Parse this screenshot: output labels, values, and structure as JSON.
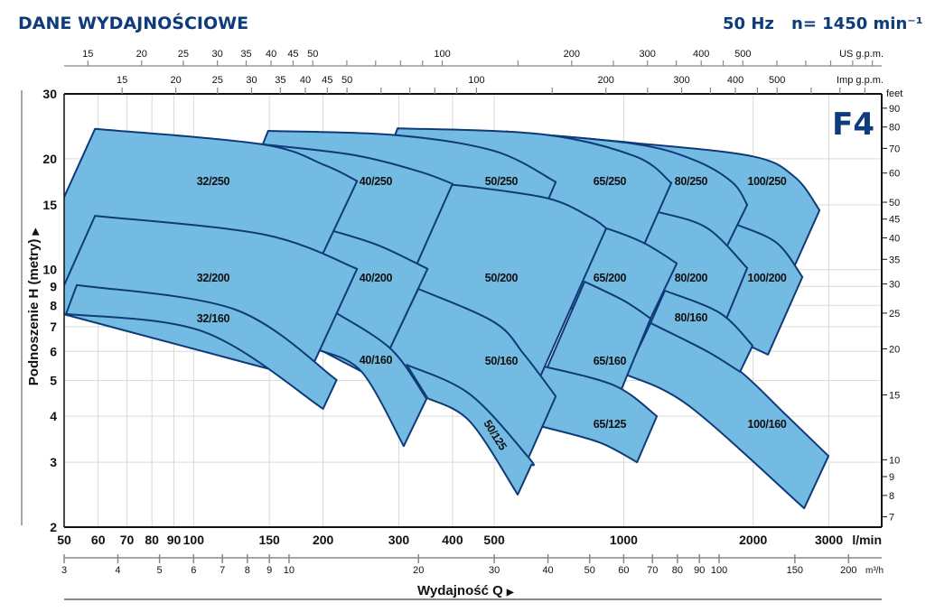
{
  "header": {
    "title": "DANE WYDAJNOŚCIOWE",
    "frequency": "50 Hz",
    "speed": "n= 1450 min⁻¹",
    "series_code": "F4"
  },
  "colors": {
    "navy": "#0d3b7c",
    "region_fill": "#74bbe3",
    "region_stroke": "#0f3a78"
  },
  "chart_data": {
    "type": "area",
    "title": "DANE WYDAJNOŚCIOWE",
    "xlabel": "Wydajność Q",
    "xlabel_arrow": "▶",
    "ylabel": "Podnoszenie H  (metry)",
    "ylabel_arrow": "▶",
    "x_unit": "l/min",
    "x_scale": "log",
    "xlim": [
      50,
      3980
    ],
    "x_ticks": [
      50,
      60,
      70,
      80,
      90,
      100,
      150,
      200,
      300,
      400,
      500,
      1000,
      2000,
      3000
    ],
    "y_scale": "log",
    "ylim": [
      2,
      30
    ],
    "y_ticks": [
      2,
      3,
      4,
      5,
      6,
      7,
      8,
      9,
      10,
      15,
      20,
      30
    ],
    "grid": true,
    "secondary_axes": {
      "m3h": {
        "unit": "m³/h",
        "ticks": [
          3,
          4,
          5,
          6,
          7,
          8,
          9,
          10,
          20,
          30,
          40,
          50,
          60,
          70,
          80,
          90,
          100,
          150,
          200
        ]
      },
      "us_gpm": {
        "unit": "US g.p.m.",
        "labeled": [
          15,
          20,
          25,
          30,
          35,
          40,
          45,
          50,
          100,
          200,
          300,
          400,
          500
        ],
        "minor": [
          60,
          70,
          80,
          90,
          150,
          250,
          350,
          450,
          600,
          700,
          800,
          900,
          1000
        ]
      },
      "imp_gpm": {
        "unit": "Imp g.p.m.",
        "labeled": [
          15,
          20,
          25,
          30,
          35,
          40,
          45,
          50,
          100,
          200,
          300,
          400,
          500
        ],
        "minor": [
          60,
          70,
          80,
          90,
          150,
          250,
          350,
          450,
          600,
          700,
          800
        ]
      },
      "feet": {
        "unit": "feet",
        "ticks": [
          7,
          8,
          9,
          10,
          15,
          20,
          25,
          30,
          35,
          40,
          45,
          50,
          60,
          70,
          80,
          90
        ]
      }
    },
    "regions": [
      {
        "name": "100/250",
        "top": [
          [
            533,
            23.7
          ],
          [
            1048,
            22.1
          ],
          [
            1994,
            20.3
          ],
          [
            2504,
            17.8
          ],
          [
            2853,
            14.5
          ]
        ],
        "bottom": [
          [
            2363,
            8.87
          ],
          [
            1700,
            11.1
          ]
        ]
      },
      {
        "name": "100/200",
        "top": [
          [
            1619,
            13.9
          ],
          [
            1846,
            13.2
          ],
          [
            2273,
            11.8
          ],
          [
            2603,
            9.55
          ]
        ],
        "bottom": [
          [
            2165,
            5.88
          ],
          [
            1470,
            7.28
          ]
        ]
      },
      {
        "name": "100/160",
        "top": [
          [
            1155,
            7.16
          ],
          [
            1543,
            6.05
          ],
          [
            1872,
            5.28
          ],
          [
            2386,
            4.03
          ],
          [
            2994,
            3.12
          ]
        ],
        "bottom": [
          [
            2628,
            2.25
          ],
          [
            1422,
            4.26
          ],
          [
            1013,
            5.19
          ]
        ]
      },
      {
        "name": "80/250",
        "top": [
          [
            533,
            23.7
          ],
          [
            1048,
            22.0
          ],
          [
            1450,
            19.9
          ],
          [
            1785,
            17.3
          ],
          [
            1937,
            15.0
          ]
        ],
        "bottom": [
          [
            1668,
            10.5
          ],
          [
            864,
            11.1
          ]
        ]
      },
      {
        "name": "80/200",
        "top": [
          [
            1048,
            14.7
          ],
          [
            1212,
            14.3
          ],
          [
            1566,
            12.95
          ],
          [
            1937,
            10.1
          ]
        ],
        "bottom": [
          [
            1675,
            6.69
          ],
          [
            1127,
            8.39
          ]
        ]
      },
      {
        "name": "80/160",
        "top": [
          [
            1247,
            8.77
          ],
          [
            1675,
            7.62
          ],
          [
            1994,
            6.22
          ]
        ],
        "bottom": [
          [
            1864,
            5.28
          ],
          [
            1543,
            6.05
          ],
          [
            1155,
            7.16
          ]
        ]
      },
      {
        "name": "65/250",
        "top": [
          [
            298,
            24.2
          ],
          [
            646,
            23.3
          ],
          [
            1064,
            20.3
          ],
          [
            1290,
            17.2
          ]
        ],
        "bottom": [
          [
            1048,
            9.93
          ],
          [
            246,
            13.2
          ]
        ]
      },
      {
        "name": "65/200",
        "top": [
          [
            784,
            13.5
          ],
          [
            911,
            12.95
          ],
          [
            1116,
            11.8
          ],
          [
            1329,
            10.4
          ]
        ],
        "bottom": [
          [
            1084,
            6.32
          ],
          [
            678,
            8.39
          ]
        ]
      },
      {
        "name": "65/160",
        "top": [
          [
            811,
            9.28
          ],
          [
            998,
            8.25
          ],
          [
            1155,
            7.37
          ]
        ],
        "bottom": [
          [
            961,
            4.38
          ],
          [
            640,
            4.91
          ]
        ]
      },
      {
        "name": "65/125",
        "top": [
          [
            640,
            5.49
          ],
          [
            951,
            4.85
          ],
          [
            1194,
            4.0
          ]
        ],
        "bottom": [
          [
            1074,
            3.0
          ],
          [
            876,
            3.4
          ],
          [
            640,
            3.76
          ]
        ]
      },
      {
        "name": "50/250",
        "top": [
          [
            149,
            23.8
          ],
          [
            294,
            23.2
          ],
          [
            500,
            21.0
          ],
          [
            695,
            17.3
          ]
        ],
        "bottom": [
          [
            616,
            12.45
          ],
          [
            122,
            13.2
          ]
        ]
      },
      {
        "name": "50/200",
        "top": [
          [
            345,
            17.2
          ],
          [
            439,
            16.8
          ],
          [
            668,
            15.6
          ],
          [
            835,
            13.9
          ],
          [
            911,
            12.95
          ]
        ],
        "bottom": [
          [
            616,
            4.64
          ],
          [
            298,
            8.39
          ]
        ]
      },
      {
        "name": "50/160",
        "top": [
          [
            333,
            8.87
          ],
          [
            500,
            7.2
          ],
          [
            587,
            5.88
          ],
          [
            695,
            4.53
          ]
        ],
        "bottom": [
          [
            601,
            3.09
          ],
          [
            277,
            5.65
          ]
        ]
      },
      {
        "name": "50/125",
        "top": [
          [
            313,
            5.52
          ],
          [
            439,
            4.59
          ],
          [
            601,
            3.09
          ],
          [
            610,
            2.95
          ]
        ],
        "bottom": [
          [
            567,
            2.45
          ],
          [
            439,
            3.87
          ],
          [
            350,
            4.48
          ]
        ]
      },
      {
        "name": "40/250",
        "top": [
          [
            144,
            21.9
          ],
          [
            234,
            20.5
          ],
          [
            333,
            18.5
          ],
          [
            400,
            17.1
          ]
        ],
        "bottom": [
          [
            305,
            8.39
          ],
          [
            105,
            9.93
          ]
        ]
      },
      {
        "name": "40/200",
        "top": [
          [
            184,
            13.3
          ],
          [
            213,
            12.7
          ],
          [
            271,
            11.6
          ],
          [
            350,
            10.05
          ]
        ],
        "bottom": [
          [
            265,
            5.05
          ],
          [
            175,
            6.51
          ]
        ]
      },
      {
        "name": "40/160",
        "top": [
          [
            215,
            7.62
          ],
          [
            288,
            6.08
          ],
          [
            348,
            4.46
          ]
        ],
        "bottom": [
          [
            308,
            3.32
          ],
          [
            246,
            5.28
          ],
          [
            196,
            6.05
          ]
        ]
      },
      {
        "name": "32/250",
        "top": [
          [
            59,
            24.1
          ],
          [
            144,
            21.9
          ],
          [
            202,
            19.2
          ],
          [
            240,
            17.4
          ]
        ],
        "bottom": [
          [
            187,
            9.39
          ],
          [
            40.2,
            8.97
          ]
        ]
      },
      {
        "name": "32/200",
        "top": [
          [
            59,
            14.0
          ],
          [
            146,
            12.45
          ],
          [
            240,
            10.05
          ]
        ],
        "bottom": [
          [
            183,
            5.05
          ],
          [
            47,
            7.71
          ]
        ]
      },
      {
        "name": "32/160",
        "top": [
          [
            53.5,
            9.08
          ],
          [
            125,
            7.79
          ],
          [
            215,
            5.02
          ]
        ],
        "bottom": [
          [
            200,
            4.19
          ],
          [
            106,
            6.77
          ],
          [
            50.5,
            7.58
          ]
        ]
      }
    ]
  }
}
